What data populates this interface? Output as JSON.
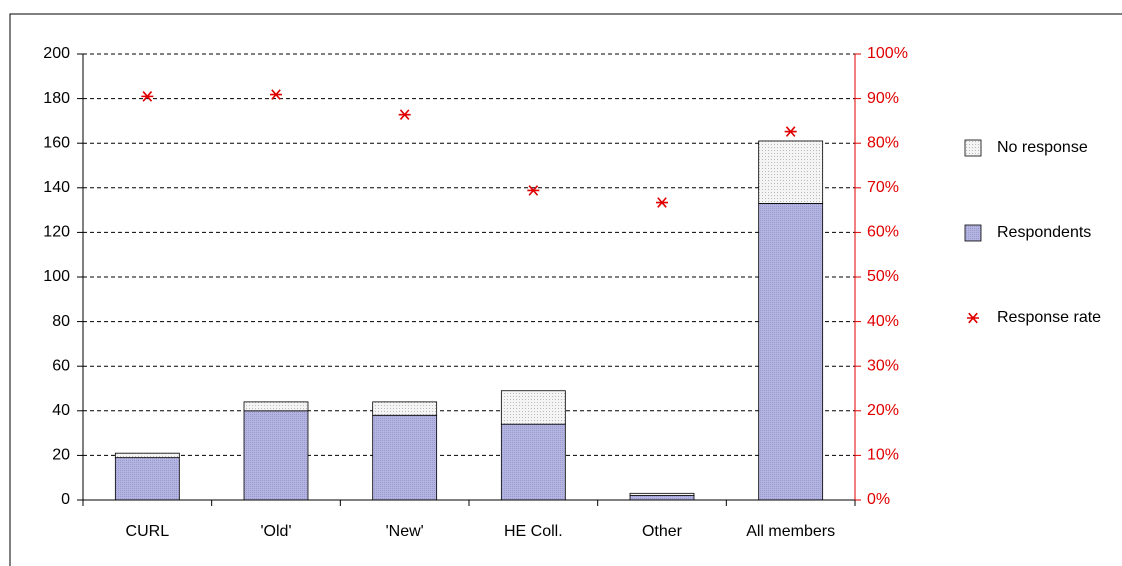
{
  "chart_data": {
    "type": "bar",
    "stacked": true,
    "categories": [
      "CURL",
      "'Old'",
      "'New'",
      "HE Coll.",
      "Other",
      "All members"
    ],
    "series": [
      {
        "name": "Respondents",
        "color": "#b4b4e0",
        "values": [
          19,
          40,
          38,
          34,
          2,
          133
        ]
      },
      {
        "name": "No response",
        "color": "#efefef",
        "values": [
          2,
          4,
          6,
          15,
          1,
          28
        ]
      },
      {
        "name": "Response rate",
        "color": "#e00000",
        "type": "scatter",
        "axis": "y2",
        "values": [
          90.5,
          90.9,
          86.4,
          69.4,
          66.7,
          82.6
        ]
      }
    ],
    "ylim": [
      0,
      200
    ],
    "yticks": [
      0,
      20,
      40,
      60,
      80,
      100,
      120,
      140,
      160,
      180,
      200
    ],
    "y2lim": [
      0,
      100
    ],
    "y2ticks": [
      {
        "value": 0,
        "label": "0%"
      },
      {
        "value": 10,
        "label": "10%"
      },
      {
        "value": 20,
        "label": "20%"
      },
      {
        "value": 30,
        "label": "30%"
      },
      {
        "value": 40,
        "label": "40%"
      },
      {
        "value": 50,
        "label": "50%"
      },
      {
        "value": 60,
        "label": "60%"
      },
      {
        "value": 70,
        "label": "70%"
      },
      {
        "value": 80,
        "label": "80%"
      },
      {
        "value": 90,
        "label": "90%"
      },
      {
        "value": 100,
        "label": "100%"
      }
    ],
    "y2color": "#e00000",
    "grid": true,
    "legend": "right"
  }
}
